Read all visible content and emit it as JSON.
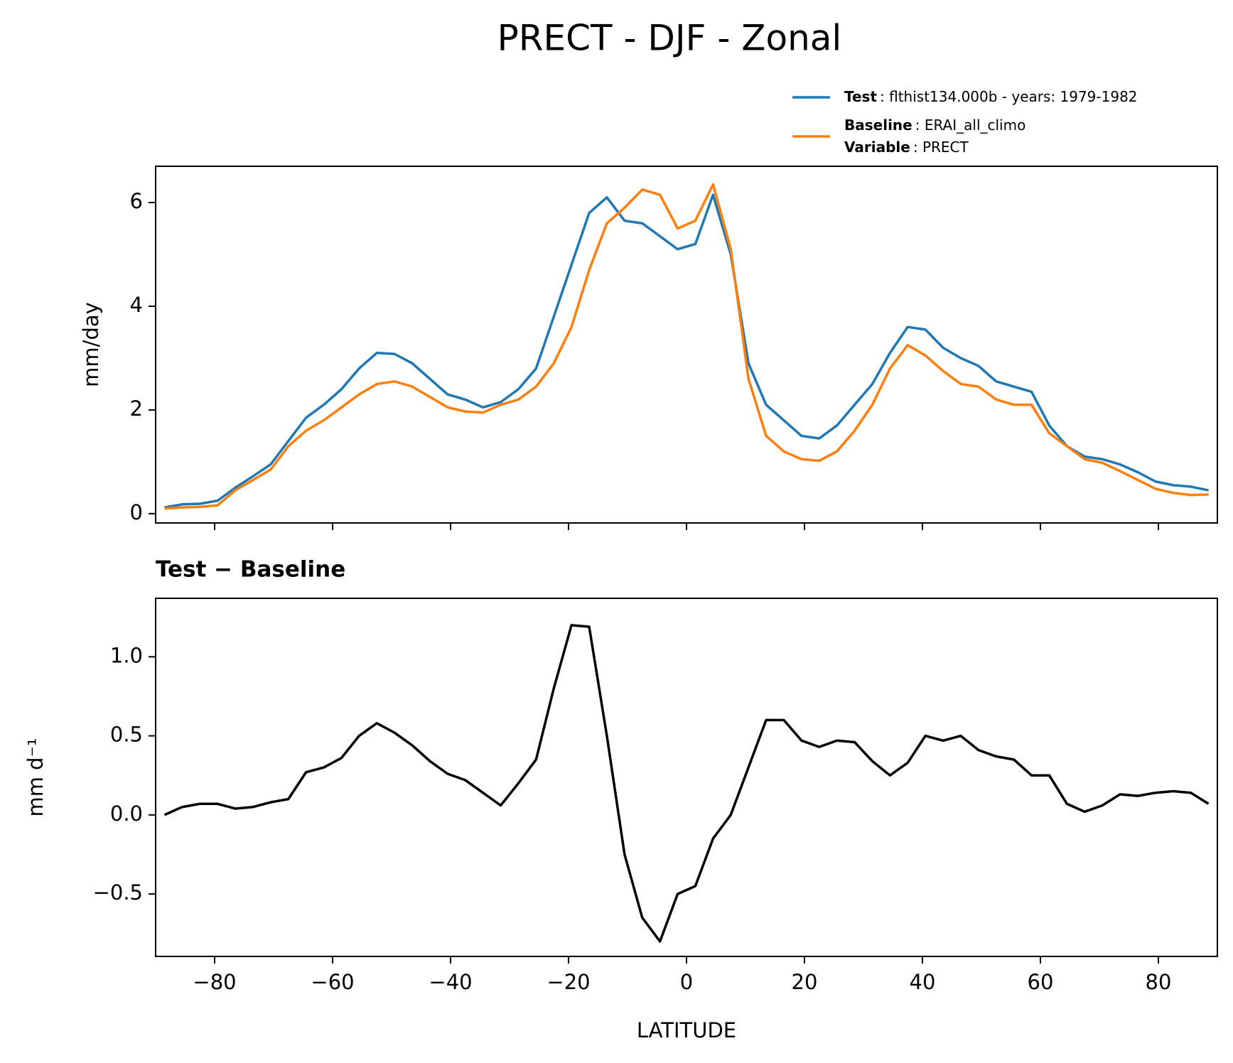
{
  "chart_data": [
    {
      "type": "line",
      "title": "PRECT - DJF - Zonal",
      "ylabel": "mm/day",
      "x": [
        -88.5,
        -85.5,
        -82.5,
        -79.5,
        -76.5,
        -73.5,
        -70.5,
        -67.5,
        -64.5,
        -61.5,
        -58.5,
        -55.5,
        -52.5,
        -49.5,
        -46.5,
        -43.5,
        -40.5,
        -37.5,
        -34.5,
        -31.5,
        -28.5,
        -25.5,
        -22.5,
        -19.5,
        -16.5,
        -13.5,
        -10.5,
        -7.5,
        -4.5,
        -1.5,
        1.5,
        4.5,
        7.5,
        10.5,
        13.5,
        16.5,
        19.5,
        22.5,
        25.5,
        28.5,
        31.5,
        34.5,
        37.5,
        40.5,
        43.5,
        46.5,
        49.5,
        52.5,
        55.5,
        58.5,
        61.5,
        64.5,
        67.5,
        70.5,
        73.5,
        76.5,
        79.5,
        82.5,
        85.5,
        88.5
      ],
      "series": [
        {
          "name": "Test",
          "description": ": flthist134.000b - years: 1979-1982",
          "color": "#1f77b4",
          "values": [
            0.12,
            0.18,
            0.19,
            0.25,
            0.5,
            0.72,
            0.95,
            1.4,
            1.85,
            2.1,
            2.4,
            2.8,
            3.1,
            3.08,
            2.9,
            2.6,
            2.3,
            2.2,
            2.05,
            2.15,
            2.4,
            2.8,
            3.8,
            4.8,
            5.8,
            6.1,
            5.65,
            5.6,
            5.35,
            5.1,
            5.2,
            6.15,
            5.0,
            2.9,
            2.1,
            1.8,
            1.5,
            1.45,
            1.7,
            2.1,
            2.5,
            3.1,
            3.6,
            3.55,
            3.2,
            3.0,
            2.85,
            2.55,
            2.45,
            2.35,
            1.7,
            1.3,
            1.1,
            1.05,
            0.95,
            0.8,
            0.62,
            0.55,
            0.52,
            0.45
          ]
        },
        {
          "name": "Baseline",
          "description": ": ERAI_all_climo",
          "color": "#ff7f0e",
          "values": [
            0.1,
            0.12,
            0.13,
            0.16,
            0.45,
            0.65,
            0.85,
            1.3,
            1.6,
            1.8,
            2.05,
            2.3,
            2.5,
            2.55,
            2.45,
            2.25,
            2.05,
            1.97,
            1.95,
            2.1,
            2.2,
            2.45,
            2.9,
            3.6,
            4.7,
            5.6,
            5.9,
            6.25,
            6.15,
            5.5,
            5.65,
            6.35,
            5.1,
            2.6,
            1.5,
            1.2,
            1.05,
            1.02,
            1.2,
            1.6,
            2.1,
            2.8,
            3.25,
            3.05,
            2.75,
            2.5,
            2.45,
            2.2,
            2.1,
            2.1,
            1.55,
            1.3,
            1.05,
            0.98,
            0.82,
            0.65,
            0.48,
            0.4,
            0.36,
            0.37
          ]
        }
      ],
      "legend_extra": {
        "name": "Variable",
        "description": ": PRECT"
      },
      "xlim": [
        -90,
        90
      ],
      "xticks": [
        -80,
        -60,
        -40,
        -20,
        0,
        20,
        40,
        60,
        80
      ],
      "xtick_labels": false,
      "ylim": [
        -0.18,
        6.7
      ],
      "yticks": [
        0,
        2,
        4,
        6
      ],
      "grid": false,
      "legend": "upper right"
    },
    {
      "type": "line",
      "title": "Test − Baseline",
      "xlabel": "LATITUDE",
      "ylabel": "mm d⁻¹",
      "x": [
        -88.5,
        -85.5,
        -82.5,
        -79.5,
        -76.5,
        -73.5,
        -70.5,
        -67.5,
        -64.5,
        -61.5,
        -58.5,
        -55.5,
        -52.5,
        -49.5,
        -46.5,
        -43.5,
        -40.5,
        -37.5,
        -34.5,
        -31.5,
        -28.5,
        -25.5,
        -22.5,
        -19.5,
        -16.5,
        -13.5,
        -10.5,
        -7.5,
        -4.5,
        -1.5,
        1.5,
        4.5,
        7.5,
        10.5,
        13.5,
        16.5,
        19.5,
        22.5,
        25.5,
        28.5,
        31.5,
        34.5,
        37.5,
        40.5,
        43.5,
        46.5,
        49.5,
        52.5,
        55.5,
        58.5,
        61.5,
        64.5,
        67.5,
        70.5,
        73.5,
        76.5,
        79.5,
        82.5,
        85.5,
        88.5
      ],
      "series": [
        {
          "color": "#000000",
          "values": [
            0.0,
            0.05,
            0.07,
            0.07,
            0.04,
            0.05,
            0.08,
            0.1,
            0.27,
            0.3,
            0.36,
            0.5,
            0.58,
            0.52,
            0.44,
            0.34,
            0.26,
            0.22,
            0.14,
            0.06,
            0.2,
            0.35,
            0.8,
            1.2,
            1.19,
            0.5,
            -0.25,
            -0.65,
            -0.8,
            -0.5,
            -0.45,
            -0.15,
            0.0,
            0.3,
            0.6,
            0.6,
            0.47,
            0.43,
            0.47,
            0.46,
            0.34,
            0.25,
            0.33,
            0.5,
            0.47,
            0.5,
            0.41,
            0.37,
            0.35,
            0.25,
            0.25,
            0.07,
            0.02,
            0.06,
            0.13,
            0.12,
            0.14,
            0.15,
            0.14,
            0.07
          ]
        }
      ],
      "xlim": [
        -90,
        90
      ],
      "xticks": [
        {
          "value": -80,
          "label": "−80"
        },
        {
          "value": -60,
          "label": "−60"
        },
        {
          "value": -40,
          "label": "−40"
        },
        {
          "value": -20,
          "label": "−20"
        },
        0,
        20,
        40,
        60,
        80
      ],
      "ylim": [
        -0.895,
        1.37
      ],
      "yticks": [
        {
          "value": -0.5,
          "label": "−0.5"
        },
        {
          "value": 0,
          "label": "0.0"
        },
        {
          "value": 0.5,
          "label": "0.5"
        },
        {
          "value": 1,
          "label": "1.0"
        }
      ],
      "grid": false
    }
  ]
}
